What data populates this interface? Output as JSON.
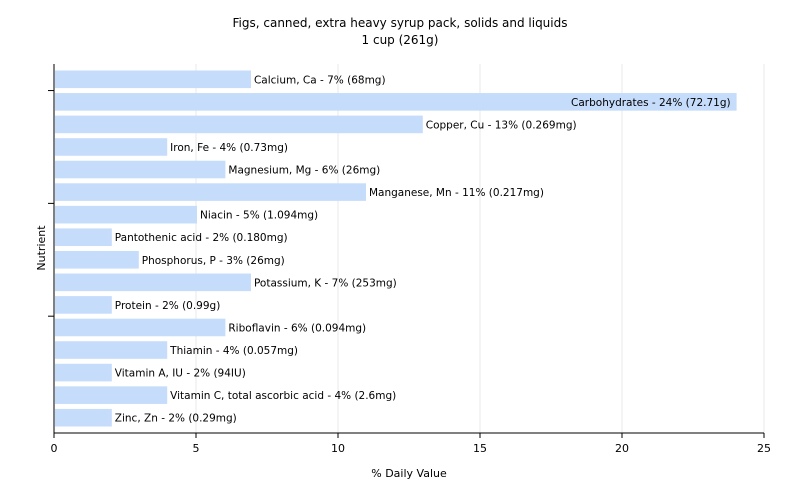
{
  "chart_data": {
    "type": "bar",
    "orientation": "horizontal",
    "title": "Figs, canned, extra heavy syrup pack, solids and liquids",
    "subtitle": "1 cup (261g)",
    "xlabel": "% Daily Value",
    "ylabel": "Nutrient",
    "xlim": [
      0,
      25
    ],
    "xticks": [
      "0",
      "5",
      "10",
      "15",
      "20",
      "25"
    ],
    "grid": true,
    "bar_color": "#c6dcfb",
    "categories": [
      "Calcium, Ca",
      "Carbohydrates",
      "Copper, Cu",
      "Iron, Fe",
      "Magnesium, Mg",
      "Manganese, Mn",
      "Niacin",
      "Pantothenic acid",
      "Phosphorus, P",
      "Potassium, K",
      "Protein",
      "Riboflavin",
      "Thiamin",
      "Vitamin A, IU",
      "Vitamin C, total ascorbic acid",
      "Zinc, Zn"
    ],
    "values": [
      6.9,
      24,
      12.95,
      3.95,
      6,
      10.95,
      5,
      2,
      2.95,
      6.9,
      2,
      6,
      3.95,
      2,
      3.95,
      2
    ],
    "labels": [
      "Calcium, Ca - 7% (68mg)",
      "Carbohydrates - 24% (72.71g)",
      "Copper, Cu - 13% (0.269mg)",
      "Iron, Fe - 4% (0.73mg)",
      "Magnesium, Mg - 6% (26mg)",
      "Manganese, Mn - 11% (0.217mg)",
      "Niacin - 5% (1.094mg)",
      "Pantothenic acid - 2% (0.180mg)",
      "Phosphorus, P - 3% (26mg)",
      "Potassium, K - 7% (253mg)",
      "Protein - 2% (0.99g)",
      "Riboflavin - 6% (0.094mg)",
      "Thiamin - 4% (0.057mg)",
      "Vitamin A, IU - 2% (94IU)",
      "Vitamin C, total ascorbic acid - 4% (2.6mg)",
      "Zinc, Zn - 2% (0.29mg)"
    ]
  }
}
